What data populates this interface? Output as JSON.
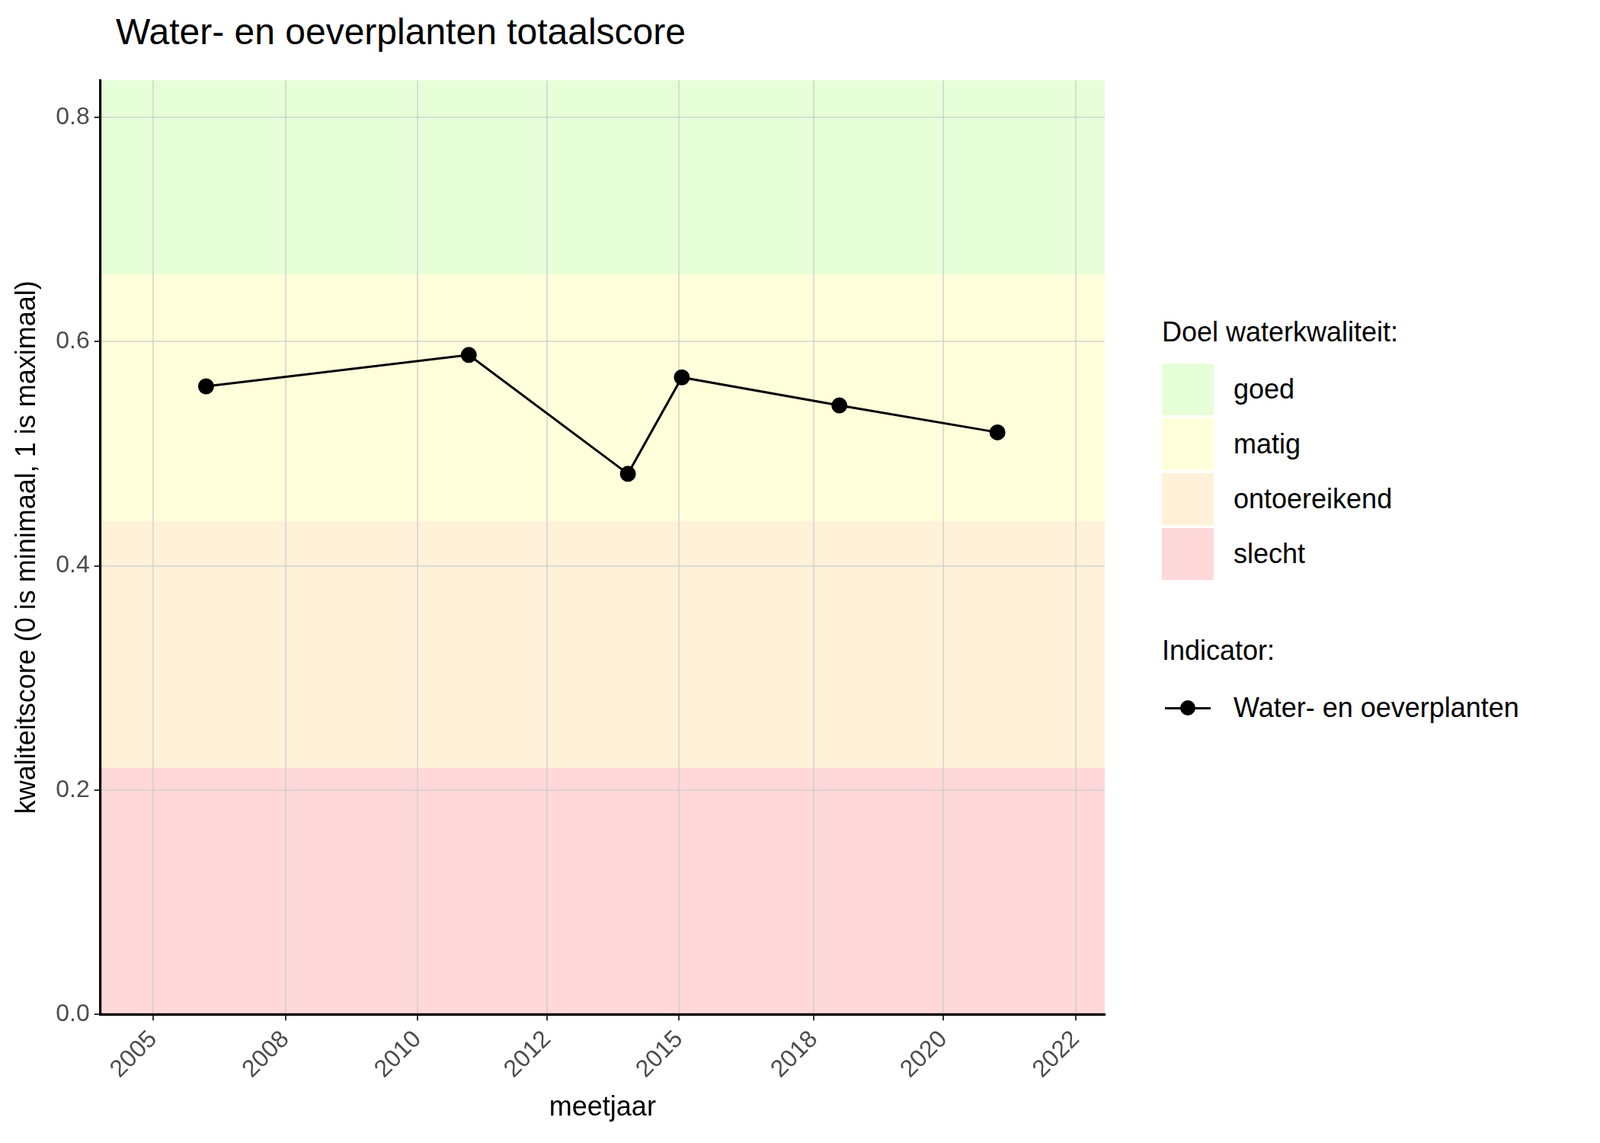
{
  "chart_data": {
    "type": "line",
    "title": "Water- en oeverplanten totaalscore",
    "x_label": "meetjaar",
    "y_label": "kwaliteitscore (0 is minimaal, 1 is maximaal)",
    "x": [
      2006.0,
      2010.97,
      2013.98,
      2015.0,
      2017.98,
      2020.97
    ],
    "series": [
      {
        "name": "Water- en oeverplanten",
        "color": "#000000",
        "marker": "circle",
        "line_style": "solid",
        "values": [
          0.56,
          0.588,
          0.482,
          0.568,
          0.543,
          0.519
        ]
      }
    ],
    "xlim": [
      2004.0,
      2023.0
    ],
    "xticks": [
      {
        "value": 2005.0,
        "label": "2005"
      },
      {
        "value": 2007.5,
        "label": "2008"
      },
      {
        "value": 2010.0,
        "label": "2010"
      },
      {
        "value": 2012.45,
        "label": "2012"
      },
      {
        "value": 2014.95,
        "label": "2015"
      },
      {
        "value": 2017.5,
        "label": "2018"
      },
      {
        "value": 2019.95,
        "label": "2020"
      },
      {
        "value": 2022.45,
        "label": "2022"
      }
    ],
    "ylim": [
      0,
      0.833
    ],
    "yticks": [
      {
        "value": 0,
        "label": "0.0"
      },
      {
        "value": 0.2,
        "label": "0.2"
      },
      {
        "value": 0.4,
        "label": "0.4"
      },
      {
        "value": 0.6,
        "label": "0.6"
      },
      {
        "value": 0.8,
        "label": "0.8"
      }
    ],
    "grid": true,
    "legend": "right",
    "bands_title": "Doel waterkwaliteit:",
    "legend_title": "Indicator:",
    "bands": [
      {
        "name": "goed",
        "color": "#e6ffd8",
        "from": 0.66,
        "to": 0.833
      },
      {
        "name": "matig",
        "color": "#ffffdb",
        "from": 0.44,
        "to": 0.66
      },
      {
        "name": "ontoereikend",
        "color": "#fff2d9",
        "from": 0.22,
        "to": 0.44
      },
      {
        "name": "slecht",
        "color": "#ffd8d9",
        "from": 0,
        "to": 0.22
      }
    ]
  }
}
